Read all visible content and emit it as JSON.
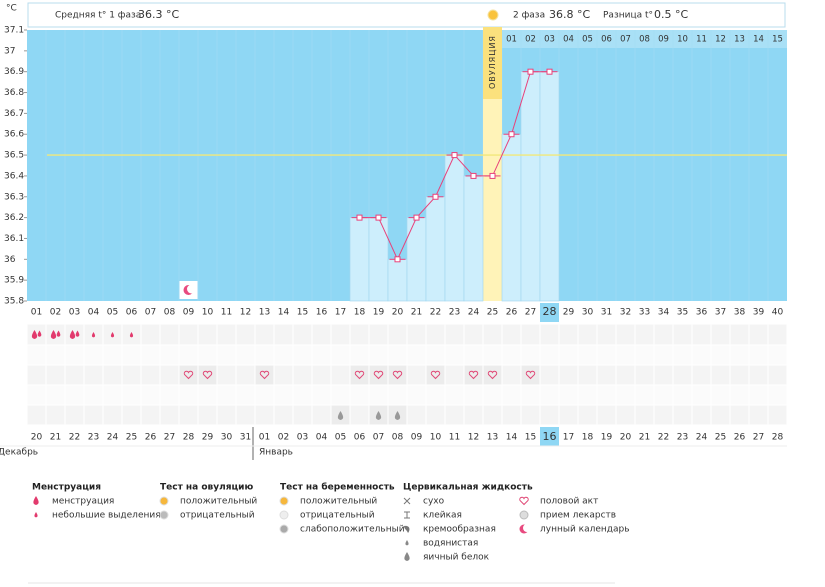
{
  "unit": "°C",
  "header": {
    "phase1_label": "Средняя t° 1 фаза",
    "phase1_value": "36.3 °C",
    "phase2_label": "2 фаза",
    "phase2_value": "36.8 °C",
    "diff_label": "Разница t°",
    "diff_value": "0.5 °C"
  },
  "chart_data": {
    "type": "line",
    "categories": [
      "01",
      "02",
      "03",
      "04",
      "05",
      "06",
      "07",
      "08",
      "09",
      "10",
      "11",
      "12",
      "13",
      "14",
      "15",
      "16",
      "17",
      "18",
      "19",
      "20",
      "21",
      "22",
      "23",
      "24",
      "25",
      "26",
      "27",
      "28",
      "29",
      "30",
      "31",
      "32",
      "33",
      "34",
      "35",
      "36",
      "37",
      "38",
      "39",
      "40"
    ],
    "series": [
      {
        "color": "#e8417a",
        "bar_color": "#cdeefc",
        "values": [
          null,
          null,
          null,
          null,
          null,
          null,
          null,
          null,
          null,
          null,
          null,
          null,
          null,
          null,
          null,
          null,
          null,
          36.2,
          36.2,
          36.0,
          36.2,
          36.3,
          36.5,
          36.4,
          36.4,
          36.6,
          36.9,
          36.9,
          null,
          null,
          null,
          null,
          null,
          null,
          null,
          null,
          null,
          null,
          null,
          null
        ]
      }
    ],
    "ylim": [
      35.8,
      37.1
    ],
    "yticks": [
      35.8,
      35.9,
      36,
      36.1,
      36.2,
      36.3,
      36.4,
      36.5,
      36.6,
      36.7,
      36.8,
      36.9,
      37,
      37.1
    ],
    "background_color": "#8fd7f4",
    "cover_line": 36.5,
    "cover_line_color": "#f2e87a",
    "ovulation_day": "25",
    "ovulation_label": "ОВУЛЯЦИЯ",
    "ovulation_color": "#fff3b8",
    "luteal_days": [
      "01",
      "02",
      "03",
      "04",
      "05",
      "06",
      "07",
      "08",
      "09",
      "10",
      "11",
      "12",
      "13",
      "14",
      "15"
    ],
    "today_day": "28",
    "dates": [
      "20",
      "21",
      "22",
      "23",
      "24",
      "25",
      "26",
      "27",
      "28",
      "29",
      "30",
      "31",
      "01",
      "02",
      "03",
      "04",
      "05",
      "06",
      "07",
      "08",
      "09",
      "10",
      "11",
      "12",
      "13",
      "14",
      "15",
      "16",
      "17",
      "18",
      "19",
      "20",
      "21",
      "22",
      "23",
      "24",
      "25",
      "26",
      "27",
      "28"
    ],
    "weekends": [
      false,
      true,
      true,
      false,
      false,
      false,
      false,
      false,
      true,
      true,
      false,
      false,
      false,
      false,
      false,
      true,
      true,
      false,
      false,
      false,
      false,
      false,
      true,
      true,
      false,
      false,
      false,
      false,
      false,
      true,
      true,
      false,
      false,
      false,
      false,
      false,
      true,
      true,
      false,
      false
    ],
    "weekend_color": "#d42a5b",
    "today_date": "16",
    "months": [
      "Декабрь",
      "Январь"
    ]
  },
  "legend": {
    "sections": [
      {
        "title": "Менструация",
        "items": [
          "менструация",
          "небольшие выделения"
        ]
      },
      {
        "title": "Тест на овуляцию",
        "items": [
          "положительный",
          "отрицательный"
        ]
      },
      {
        "title": "Тест на беременность",
        "items": [
          "положительный",
          "отрицательный",
          "слабоположительный"
        ]
      },
      {
        "title": "Цервикальная жидкость",
        "items": [
          "сухо",
          "клейкая",
          "кремообразная",
          "водянистая",
          "яичный белок"
        ]
      },
      {
        "items": [
          "половой акт",
          "прием лекарств",
          "лунный календарь"
        ]
      }
    ]
  }
}
